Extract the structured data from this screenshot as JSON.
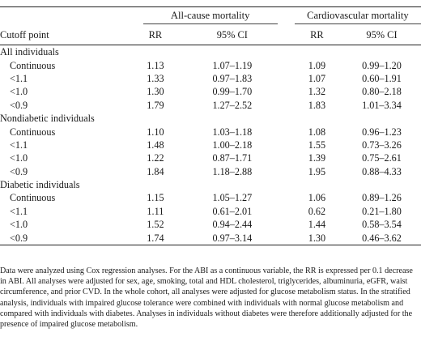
{
  "header": {
    "cutoff_label": "Cutoff point",
    "group_all_cause": "All-cause mortality",
    "group_cardio": "Cardiovascular mortality",
    "rr": "RR",
    "ci": "95% CI"
  },
  "sections": [
    {
      "title": "All individuals",
      "rows": [
        {
          "cutoff": "Continuous",
          "rr1": "1.13",
          "ci1": "1.07–1.19",
          "rr2": "1.09",
          "ci2": "0.99–1.20"
        },
        {
          "cutoff": "<1.1",
          "rr1": "1.33",
          "ci1": "0.97–1.83",
          "rr2": "1.07",
          "ci2": "0.60–1.91"
        },
        {
          "cutoff": "<1.0",
          "rr1": "1.30",
          "ci1": "0.99–1.70",
          "rr2": "1.32",
          "ci2": "0.80–2.18"
        },
        {
          "cutoff": "<0.9",
          "rr1": "1.79",
          "ci1": "1.27–2.52",
          "rr2": "1.83",
          "ci2": "1.01–3.34"
        }
      ]
    },
    {
      "title": "Nondiabetic individuals",
      "rows": [
        {
          "cutoff": "Continuous",
          "rr1": "1.10",
          "ci1": "1.03–1.18",
          "rr2": "1.08",
          "ci2": "0.96–1.23"
        },
        {
          "cutoff": "<1.1",
          "rr1": "1.48",
          "ci1": "1.00–2.18",
          "rr2": "1.55",
          "ci2": "0.73–3.26"
        },
        {
          "cutoff": "<1.0",
          "rr1": "1.22",
          "ci1": "0.87–1.71",
          "rr2": "1.39",
          "ci2": "0.75–2.61"
        },
        {
          "cutoff": "<0.9",
          "rr1": "1.84",
          "ci1": "1.18–2.88",
          "rr2": "1.95",
          "ci2": "0.88–4.33"
        }
      ]
    },
    {
      "title": "Diabetic individuals",
      "rows": [
        {
          "cutoff": "Continuous",
          "rr1": "1.15",
          "ci1": "1.05–1.27",
          "rr2": "1.06",
          "ci2": "0.89–1.26"
        },
        {
          "cutoff": "<1.1",
          "rr1": "1.11",
          "ci1": "0.61–2.01",
          "rr2": "0.62",
          "ci2": "0.21–1.80"
        },
        {
          "cutoff": "<1.0",
          "rr1": "1.52",
          "ci1": "0.94–2.44",
          "rr2": "1.44",
          "ci2": "0.58–3.54"
        },
        {
          "cutoff": "<0.9",
          "rr1": "1.74",
          "ci1": "0.97–3.14",
          "rr2": "1.30",
          "ci2": "0.46–3.62"
        }
      ]
    }
  ],
  "footnote": "Data were analyzed using Cox regression analyses. For the ABI as a continuous variable, the RR is expressed per 0.1 decrease in ABI. All analyses were adjusted for sex, age, smoking, total and HDL cholesterol, triglycerides, albuminuria, eGFR, waist circumference, and prior CVD. In the whole cohort, all analyses were adjusted for glucose metabolism status. In the stratified analysis, individuals with impaired glucose tolerance were combined with individuals with normal glucose metabolism and compared with individuals with diabetes. Analyses in individuals without diabetes were therefore additionally adjusted for the presence of impaired glucose metabolism."
}
